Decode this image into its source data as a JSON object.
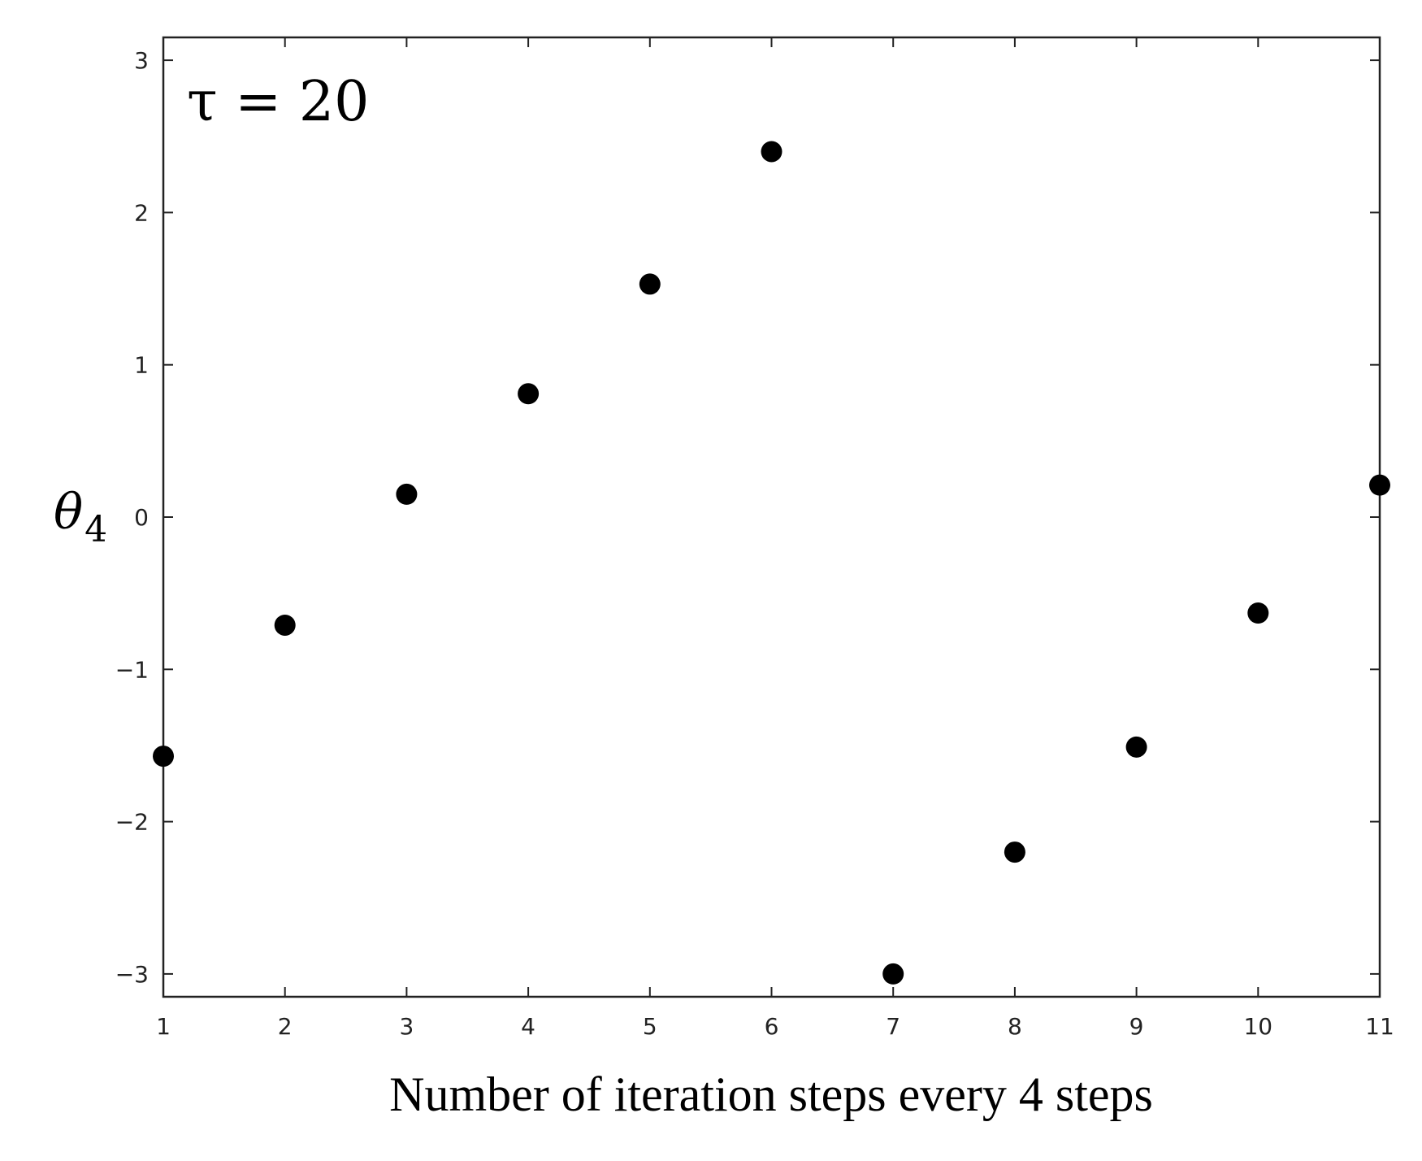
{
  "chart_data": {
    "type": "scatter",
    "x": [
      1,
      2,
      3,
      4,
      5,
      6,
      7,
      8,
      9,
      10,
      11
    ],
    "y": [
      -1.57,
      -0.71,
      0.15,
      0.81,
      1.53,
      2.4,
      -3.0,
      -2.2,
      -1.51,
      -0.63,
      0.21
    ],
    "xlabel": "Number of iteration steps every 4 steps",
    "ylabel": "θ",
    "ylabel_subscript": "4",
    "annotation": "τ = 20",
    "xlim": [
      1,
      11
    ],
    "ylim": [
      -3.15,
      3.15
    ],
    "xticks": [
      1,
      2,
      3,
      4,
      5,
      6,
      7,
      8,
      9,
      10,
      11
    ],
    "yticks": [
      -3,
      -2,
      -1,
      0,
      1,
      2,
      3
    ],
    "ytick_labels": [
      "−3",
      "−2",
      "−1",
      "0",
      "1",
      "2",
      "3"
    ],
    "grid": false,
    "marker_color": "#000000"
  }
}
